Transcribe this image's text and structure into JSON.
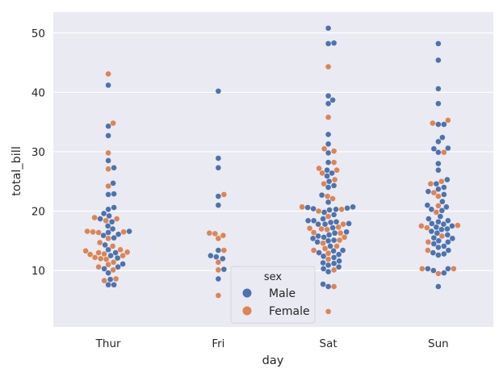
{
  "chart_data": {
    "type": "scatter",
    "subtype": "swarm",
    "title": "",
    "xlabel": "day",
    "ylabel": "total_bill",
    "categories": [
      "Thur",
      "Fri",
      "Sat",
      "Sun"
    ],
    "ylim": [
      0.5,
      53.5
    ],
    "yticks": [
      10,
      20,
      30,
      40,
      50
    ],
    "grid": true,
    "legend": {
      "title": "sex",
      "position": "lower-center"
    },
    "series": [
      {
        "name": "Male",
        "color": "#4c72b0",
        "values": {
          "Thur": [
            7.6,
            7.6,
            8.5,
            9.6,
            10.3,
            10.6,
            11.1,
            12.1,
            12.5,
            13.0,
            13.5,
            14.3,
            15.5,
            15.9,
            16.1,
            16.4,
            16.6,
            17.0,
            17.5,
            18.2,
            18.7,
            19.2,
            19.6,
            20.3,
            20.6,
            22.8,
            22.9,
            24.7,
            27.3,
            28.5,
            32.7,
            34.3,
            41.2
          ],
          "Fri": [
            8.6,
            10.2,
            12.0,
            12.3,
            12.5,
            13.4,
            21.0,
            22.5,
            27.3,
            28.9,
            40.2
          ],
          "Sat": [
            7.7,
            7.3,
            9.8,
            10.3,
            10.6,
            10.9,
            11.2,
            11.3,
            11.6,
            12.2,
            12.4,
            12.7,
            13.0,
            13.3,
            13.4,
            14.1,
            14.8,
            15.0,
            15.1,
            15.4,
            15.6,
            15.8,
            16.0,
            16.3,
            16.5,
            17.2,
            17.8,
            17.8,
            17.9,
            18.1,
            18.2,
            18.4,
            18.4,
            18.7,
            19.4,
            19.8,
            20.2,
            20.3,
            20.4,
            20.5,
            20.6,
            20.7,
            21.5,
            22.7,
            24.0,
            24.3,
            25.0,
            25.9,
            26.4,
            26.9,
            28.2,
            29.8,
            31.3,
            32.9,
            38.1,
            38.7,
            39.4,
            48.2,
            48.3,
            50.8
          ],
          "Sun": [
            7.3,
            9.6,
            10.0,
            10.3,
            10.3,
            12.6,
            12.8,
            13.0,
            13.4,
            13.9,
            14.1,
            14.5,
            14.8,
            15.0,
            15.4,
            15.5,
            16.0,
            16.3,
            16.6,
            16.9,
            17.0,
            17.3,
            17.5,
            17.8,
            17.9,
            18.2,
            18.4,
            18.7,
            19.1,
            20.1,
            20.3,
            20.7,
            21.0,
            21.6,
            22.8,
            23.3,
            23.7,
            24.0,
            24.6,
            25.3,
            26.9,
            28.0,
            29.9,
            30.5,
            30.6,
            31.7,
            32.4,
            34.6,
            34.6,
            38.1,
            40.6,
            45.4,
            48.2
          ]
        }
      },
      {
        "name": "Female",
        "color": "#dd8452",
        "values": {
          "Thur": [
            8.3,
            8.6,
            10.1,
            10.6,
            11.0,
            11.4,
            11.9,
            12.0,
            12.2,
            12.5,
            12.7,
            12.8,
            13.0,
            13.1,
            13.3,
            13.5,
            14.1,
            14.7,
            15.4,
            16.4,
            16.5,
            16.5,
            16.6,
            18.4,
            18.7,
            18.9,
            24.2,
            27.1,
            29.8,
            34.8,
            43.1
          ],
          "Fri": [
            5.8,
            10.1,
            11.4,
            13.4,
            15.4,
            15.9,
            16.2,
            16.3,
            22.8
          ],
          "Sat": [
            3.1,
            7.3,
            10.1,
            11.9,
            12.9,
            13.4,
            13.7,
            14.1,
            14.6,
            15.1,
            15.6,
            16.3,
            16.4,
            16.9,
            17.0,
            17.1,
            17.3,
            17.8,
            19.1,
            20.0,
            20.3,
            20.7,
            22.1,
            22.5,
            24.6,
            25.3,
            26.4,
            26.9,
            27.2,
            28.2,
            30.1,
            30.5,
            35.8,
            44.3
          ],
          "Sun": [
            9.5,
            10.3,
            10.3,
            13.4,
            14.8,
            15.8,
            17.2,
            17.5,
            17.6,
            19.8,
            20.9,
            22.5,
            23.1,
            24.6,
            25.0,
            29.9,
            34.8,
            35.3
          ]
        }
      }
    ]
  }
}
